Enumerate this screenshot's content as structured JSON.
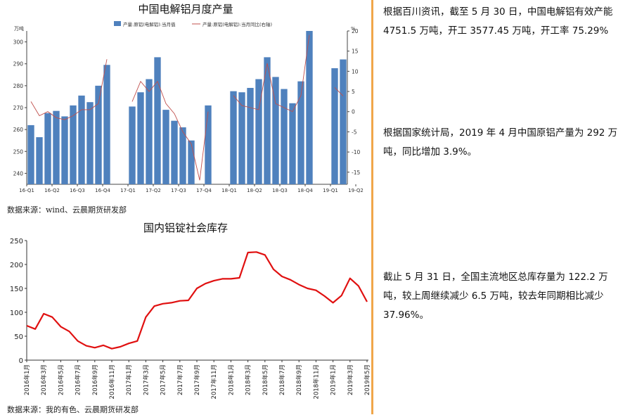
{
  "chart_data": [
    {
      "type": "bar",
      "title": "中国电解铝月度产量",
      "y_unit_left": "万吨",
      "y_unit_right": "%",
      "ylim": [
        235,
        305
      ],
      "ylim_right": [
        -18,
        20
      ],
      "left_ticks": [
        240,
        250,
        260,
        270,
        280,
        290,
        300
      ],
      "right_ticks": [
        -15,
        -10,
        -5,
        0,
        5,
        10,
        15,
        20
      ],
      "x_tick_labels": [
        "16-Q1",
        "16-Q2",
        "16-Q3",
        "16-Q4",
        "17-Q1",
        "17-Q2",
        "17-Q3",
        "17-Q4",
        "18-Q1",
        "18-Q2",
        "18-Q3",
        "18-Q4",
        "19-Q1",
        "19-Q2"
      ],
      "legend": {
        "bar": "产量:原铝(电解铝):当月值",
        "line": "产量:原铝(电解铝):当月同比(右轴)"
      },
      "series": [
        {
          "name": "产量:原铝(电解铝):当月值",
          "kind": "bar",
          "values": [
            262,
            256.5,
            267.5,
            268.5,
            266,
            271,
            275.5,
            272.5,
            280,
            289.5,
            null,
            null,
            270.5,
            277,
            283,
            293,
            269,
            264,
            261,
            255,
            235,
            271,
            null,
            null,
            277.5,
            277,
            279,
            283,
            293,
            284,
            278.5,
            272,
            282,
            305,
            null,
            null,
            288,
            292
          ]
        },
        {
          "name": "产量:原铝(电解铝):当月同比(右轴)",
          "kind": "line",
          "values": [
            2.5,
            -1,
            0,
            -1.5,
            -2,
            -1,
            0.5,
            0.5,
            2,
            13,
            null,
            null,
            2.5,
            7.5,
            5,
            7.5,
            2,
            -0.5,
            -5,
            -8,
            -17,
            0,
            null,
            null,
            4,
            1.5,
            1,
            0.5,
            12,
            2,
            1,
            0,
            4,
            19,
            null,
            null,
            6,
            3.9
          ]
        }
      ],
      "source": "数据来源：wind、云晨期货研发部"
    },
    {
      "type": "line",
      "title": "国内铝锭社会库存",
      "ylim": [
        0,
        250
      ],
      "y_ticks": [
        0,
        50,
        100,
        150,
        200,
        250
      ],
      "x_tick_labels": [
        "2016年1月",
        "2016年3月",
        "2016年5月",
        "2016年7月",
        "2016年9月",
        "2016年11月",
        "2017年1月",
        "2017年3月",
        "2017年5月",
        "2017年7月",
        "2017年9月",
        "2017年11月",
        "2018年1月",
        "2018年3月",
        "2018年5月",
        "2018年7月",
        "2018年9月",
        "2018年11月",
        "2019年1月",
        "2019年3月",
        "2019年5月"
      ],
      "months": [
        "2016-01",
        "2016-02",
        "2016-03",
        "2016-04",
        "2016-05",
        "2016-06",
        "2016-07",
        "2016-08",
        "2016-09",
        "2016-10",
        "2016-11",
        "2016-12",
        "2017-01",
        "2017-02",
        "2017-03",
        "2017-04",
        "2017-05",
        "2017-06",
        "2017-07",
        "2017-08",
        "2017-09",
        "2017-10",
        "2017-11",
        "2017-12",
        "2018-01",
        "2018-02",
        "2018-03",
        "2018-04",
        "2018-05",
        "2018-06",
        "2018-07",
        "2018-08",
        "2018-09",
        "2018-10",
        "2018-11",
        "2018-12",
        "2019-01",
        "2019-02",
        "2019-03",
        "2019-04",
        "2019-05"
      ],
      "values": [
        72,
        65,
        97,
        90,
        70,
        60,
        40,
        30,
        26,
        31,
        24,
        28,
        35,
        40,
        90,
        113,
        118,
        120,
        124,
        125,
        150,
        160,
        166,
        170,
        170,
        172,
        225,
        226,
        220,
        190,
        175,
        168,
        158,
        150,
        146,
        134,
        120,
        135,
        171,
        155,
        122
      ],
      "series_color": "#e01010",
      "source": "数据来源：我的有色、云晨期货研发部"
    }
  ],
  "notes": [
    "根据百川资讯，截至 5 月 30 日，中国电解铝有效产能 4751.5 万吨，开工 3577.45 万吨，开工率 75.29%",
    "根据国家统计局，2019 年 4 月中国原铝产量为 292 万吨，同比增加 3.9%。",
    "截止 5 月 31 日，全国主流地区总库存量为 122.2 万吨，较上周继续减少 6.5 万吨，较去年同期相比减少 37.96%。"
  ],
  "colors": {
    "bar": "#4f81bd",
    "line1": "#c0504d",
    "line2": "#e01010",
    "divider": "#f0a64a"
  }
}
